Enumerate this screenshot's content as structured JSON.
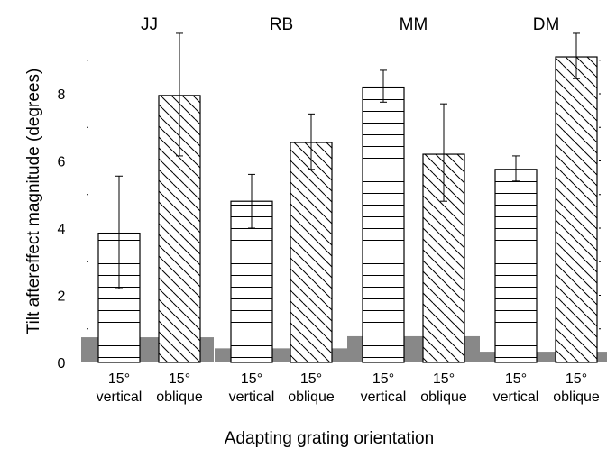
{
  "chart_data": {
    "type": "bar",
    "title": "",
    "xlabel": "Adapting grating orientation",
    "ylabel": "Tilt aftereffect magnitude (degrees)",
    "ylim": [
      0,
      9.7
    ],
    "yticks": [
      0,
      2,
      4,
      6,
      8
    ],
    "grid": false,
    "groups": [
      {
        "name": "JJ",
        "baseline": 0.75,
        "bars": [
          {
            "angle": "15°",
            "orientation": "vertical",
            "value": 3.85,
            "err_low": 2.2,
            "err_high": 5.55
          },
          {
            "angle": "15°",
            "orientation": "oblique",
            "value": 7.95,
            "err_low": 6.15,
            "err_high": 9.8
          }
        ]
      },
      {
        "name": "RB",
        "baseline": 0.42,
        "bars": [
          {
            "angle": "15°",
            "orientation": "vertical",
            "value": 4.8,
            "err_low": 4.0,
            "err_high": 5.6
          },
          {
            "angle": "15°",
            "orientation": "oblique",
            "value": 6.55,
            "err_low": 5.75,
            "err_high": 7.4
          }
        ]
      },
      {
        "name": "MM",
        "baseline": 0.78,
        "bars": [
          {
            "angle": "15°",
            "orientation": "vertical",
            "value": 8.2,
            "err_low": 7.75,
            "err_high": 8.7
          },
          {
            "angle": "15°",
            "orientation": "oblique",
            "value": 6.2,
            "err_low": 4.8,
            "err_high": 7.7
          }
        ]
      },
      {
        "name": "DM",
        "baseline": 0.32,
        "bars": [
          {
            "angle": "15°",
            "orientation": "vertical",
            "value": 5.75,
            "err_low": 5.4,
            "err_high": 6.15
          },
          {
            "angle": "15°",
            "orientation": "oblique",
            "value": 9.1,
            "err_low": 8.45,
            "err_high": 9.8
          }
        ]
      }
    ]
  },
  "colors": {
    "baseline_band": "#888888",
    "bar_fill": "#ffffff",
    "stroke": "#000000"
  }
}
